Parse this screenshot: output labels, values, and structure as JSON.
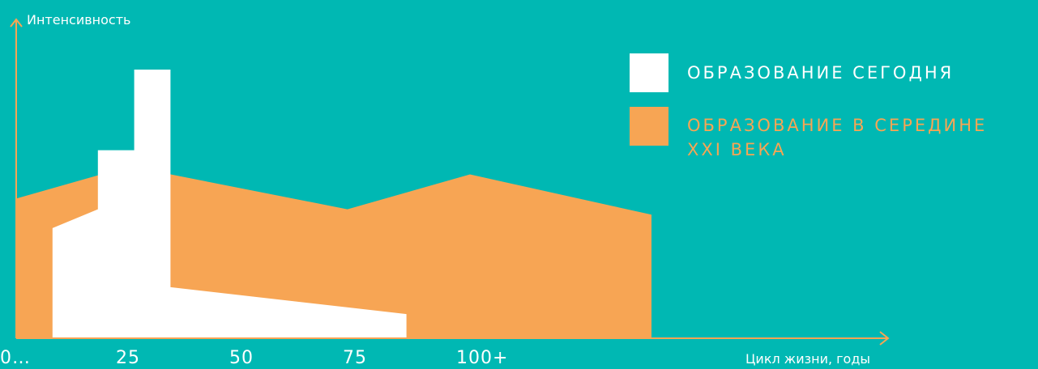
{
  "chart_data": {
    "type": "area",
    "ylabel": "Интенсивность",
    "xlabel": "Цикл жизни, годы",
    "x_ticks": [
      {
        "value": 0,
        "label": "0…"
      },
      {
        "value": 25,
        "label": "25"
      },
      {
        "value": 50,
        "label": "50"
      },
      {
        "value": 75,
        "label": "75"
      },
      {
        "value": 100,
        "label": "100+"
      }
    ],
    "xlim": [
      0,
      150
    ],
    "ylim": [
      0,
      100
    ],
    "legend_position": "top-right",
    "series": [
      {
        "name": "ОБРАЗОВАНИЕ В СЕРЕДИНЕ XXI ВЕКА",
        "color": "#f7a554",
        "points": [
          [
            0,
            52
          ],
          [
            25,
            64
          ],
          [
            73,
            48
          ],
          [
            100,
            61
          ],
          [
            140,
            46
          ],
          [
            140,
            0
          ],
          [
            0,
            0
          ]
        ]
      },
      {
        "name": "ОБРАЗОВАНИЕ СЕГОДНЯ",
        "color": "#ffffff",
        "points": [
          [
            8,
            41
          ],
          [
            18,
            48
          ],
          [
            18,
            70
          ],
          [
            26,
            70
          ],
          [
            26,
            100
          ],
          [
            34,
            100
          ],
          [
            34,
            19
          ],
          [
            86,
            9
          ],
          [
            86,
            0
          ],
          [
            8,
            0
          ]
        ]
      }
    ]
  },
  "legend": {
    "items": [
      {
        "label": "ОБРАЗОВАНИЕ СЕГОДНЯ",
        "swatch_color": "#ffffff",
        "text_color": "#ffffff"
      },
      {
        "label": "ОБРАЗОВАНИЕ В СЕРЕДИНЕ XXI ВЕКА",
        "swatch_color": "#f7a554",
        "text_color": "#f7a554"
      }
    ]
  },
  "colors": {
    "background": "#00b8b3",
    "axis": "#f7a554"
  }
}
